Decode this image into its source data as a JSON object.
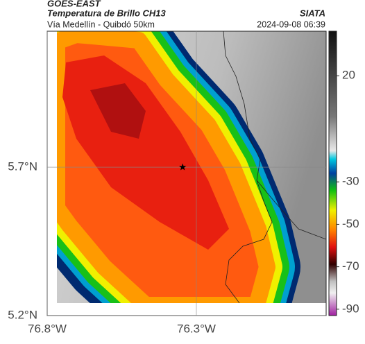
{
  "header": {
    "source": "GOES-EAST",
    "product": "Temperatura de Brillo CH13",
    "region": "Vía Medellín - Quibdó 50km",
    "credit": "SIATA",
    "timestamp": "2024-09-08 06:39"
  },
  "map": {
    "xlim": [
      -76.8,
      -75.865
    ],
    "ylim": [
      5.2,
      6.158
    ],
    "xticks": [
      {
        "value": -76.8,
        "label": "76.8°W"
      },
      {
        "value": -76.3,
        "label": "76.3°W"
      }
    ],
    "yticks": [
      {
        "value": 5.2,
        "label": "5.2°N"
      },
      {
        "value": 5.7,
        "label": "5.7°N"
      }
    ],
    "marker": {
      "lon": -76.346,
      "lat": 5.7
    },
    "colorbar": {
      "lim": [
        -93,
        41
      ],
      "ticks": [
        20,
        -30,
        -50,
        -70,
        -90
      ]
    }
  }
}
